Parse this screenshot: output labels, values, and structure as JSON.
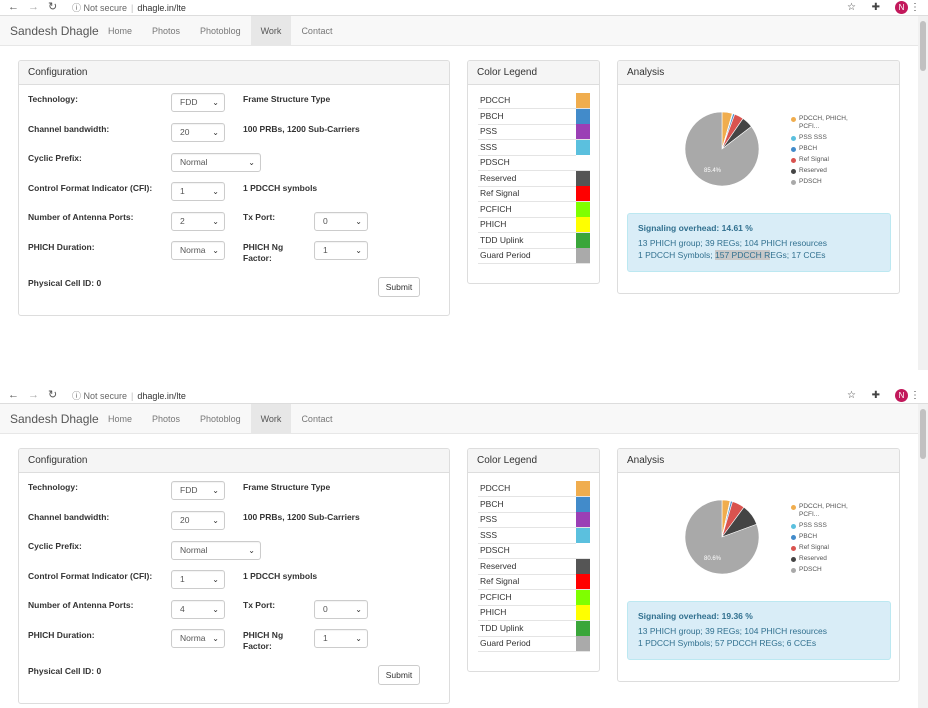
{
  "browser": {
    "url_secure": "Not secure",
    "url": "dhagle.in/lte",
    "avatar": "N"
  },
  "nav": {
    "brand": "Sandesh Dhagle",
    "links": [
      "Home",
      "Photos",
      "Photoblog",
      "Work",
      "Contact"
    ],
    "active": "Work"
  },
  "config": {
    "title": "Configuration",
    "labels": {
      "technology": "Technology:",
      "bandwidth": "Channel bandwidth:",
      "cp": "Cyclic Prefix:",
      "cfi": "Control Format Indicator (CFI):",
      "antenna": "Number of Antenna Ports:",
      "tx": "Tx Port:",
      "phich_dur": "PHICH Duration:",
      "phich_ng": "PHICH Ng Factor:",
      "cell_id": "Physical Cell ID: 0",
      "submit": "Submit"
    }
  },
  "legend": {
    "title": "Color Legend",
    "items": [
      {
        "name": "PDCCH",
        "color": "#f0ad4e"
      },
      {
        "name": "PBCH",
        "color": "#428bca"
      },
      {
        "name": "PSS",
        "color": "#9b3fb5"
      },
      {
        "name": "SSS",
        "color": "#5bc0de"
      },
      {
        "name": "PDSCH",
        "color": "#ffffff"
      },
      {
        "name": "Reserved",
        "color": "#555555"
      },
      {
        "name": "Ref Signal",
        "color": "#ff0000"
      },
      {
        "name": "PCFICH",
        "color": "#7fff00"
      },
      {
        "name": "PHICH",
        "color": "#ffff00"
      },
      {
        "name": "TDD Uplink",
        "color": "#3aa63a"
      },
      {
        "name": "Guard Period",
        "color": "#aaaaaa"
      }
    ]
  },
  "analysis": {
    "title": "Analysis",
    "pie_legend": [
      {
        "name": "PDCCH, PHICH, PCFI...",
        "color": "#f0ad4e"
      },
      {
        "name": "PSS SSS",
        "color": "#5bc0de"
      },
      {
        "name": "PBCH",
        "color": "#428bca"
      },
      {
        "name": "Ref Signal",
        "color": "#d9534f"
      },
      {
        "name": "Reserved",
        "color": "#444444"
      },
      {
        "name": "PDSCH",
        "color": "#a9a9a9"
      }
    ]
  },
  "screens": [
    {
      "technology": "FDD",
      "frame_type": "Frame Structure Type",
      "bandwidth": "20",
      "bandwidth_info": "100 PRBs, 1200 Sub-Carriers",
      "cp": "Normal",
      "cfi": "1",
      "cfi_info": "1 PDCCH symbols",
      "antenna": "2",
      "tx": "0",
      "phich_dur": "Norma",
      "phich_ng": "1",
      "overhead_label": "Signaling overhead:",
      "overhead_value": "14.61 %",
      "line1": "13 PHICH group; 39 REGs; 104 PHICH resources",
      "line2_pre": "1 PDCCH Symbols; ",
      "line2_hl": "157 PDCCH R",
      "line2_post": "EGs; 17 CCEs",
      "chart_data": {
        "type": "pie",
        "labels": [
          "PDCCH, PHICH, PCFI...",
          "PSS SSS",
          "PBCH",
          "Ref Signal",
          "Reserved",
          "PDSCH"
        ],
        "values": [
          4.5,
          0.3,
          0.8,
          4.0,
          5.0,
          85.4
        ],
        "slice_label": "85.4%"
      }
    },
    {
      "technology": "FDD",
      "frame_type": "Frame Structure Type",
      "bandwidth": "20",
      "bandwidth_info": "100 PRBs, 1200 Sub-Carriers",
      "cp": "Normal",
      "cfi": "1",
      "cfi_info": "1 PDCCH symbols",
      "antenna": "4",
      "tx": "0",
      "phich_dur": "Norma",
      "phich_ng": "1",
      "overhead_label": "Signaling overhead:",
      "overhead_value": "19.36 %",
      "line1": "13 PHICH group; 39 REGs; 104 PHICH resources",
      "line2_pre": "1 PDCCH Symbols; 57 PDCCH REGs; 6 CCEs",
      "line2_hl": "",
      "line2_post": "",
      "chart_data": {
        "type": "pie",
        "labels": [
          "PDCCH, PHICH, PCFI...",
          "PSS SSS",
          "PBCH",
          "Ref Signal",
          "Reserved",
          "PDSCH"
        ],
        "values": [
          3.5,
          0.3,
          0.8,
          5.5,
          9.3,
          80.6
        ],
        "slice_label": "80.6%"
      }
    }
  ]
}
